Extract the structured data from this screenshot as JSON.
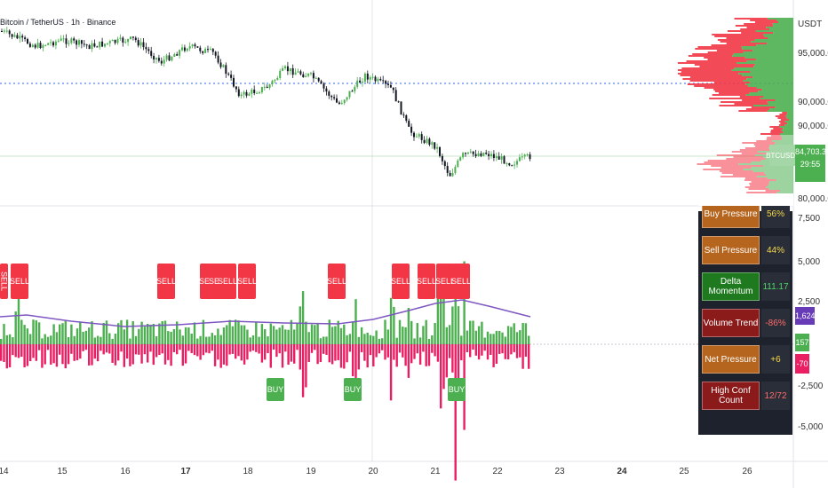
{
  "header": {
    "symbol_title": "Bitcoin / TetherUS · 1h · Binance"
  },
  "price_axis": {
    "currency": "USDT",
    "ticks": [
      "95,000.00",
      "90,000.00",
      "85,000.00",
      "80,000.00"
    ],
    "last_price_symbol": "BTCUSDT",
    "last_price": "84,703.32",
    "countdown": "29:55"
  },
  "indicator_axis": {
    "ticks": [
      "7,500",
      "5,000",
      "2,500",
      "-2,500",
      "-5,000"
    ],
    "badge_purple": "1,624",
    "badge_green": "157",
    "badge_pink": "-70"
  },
  "time_axis": {
    "labels": [
      "14",
      "15",
      "16",
      "17",
      "18",
      "19",
      "20",
      "21",
      "22",
      "23",
      "24",
      "25",
      "26"
    ]
  },
  "signals": {
    "sell_label": "SELL",
    "buy_label": "BUY"
  },
  "stats_table": [
    {
      "label": "Buy Pressure",
      "value": "56%",
      "label_color": "#b5651d",
      "value_color": "#f5d94a"
    },
    {
      "label": "Sell Pressure",
      "value": "44%",
      "label_color": "#b5651d",
      "value_color": "#f5d94a"
    },
    {
      "label": "Delta Momentum",
      "value": "111.17",
      "label_color": "#1f7a1f",
      "value_color": "#4cd964"
    },
    {
      "label": "Volume Trend",
      "value": "-86%",
      "label_color": "#8b1a1a",
      "value_color": "#ff6b6b"
    },
    {
      "label": "Net Pressure",
      "value": "+6",
      "label_color": "#b5651d",
      "value_color": "#f5d94a"
    },
    {
      "label": "High Conf Count",
      "value": "12/72",
      "label_color": "#8b1a1a",
      "value_color": "#ff6b6b"
    }
  ],
  "colors": {
    "bull": "#4caf50",
    "bear": "#f23645",
    "hist_bear": "#e91e63",
    "ma_line": "#7e57c2",
    "blue_dotted": "#2962ff"
  }
}
